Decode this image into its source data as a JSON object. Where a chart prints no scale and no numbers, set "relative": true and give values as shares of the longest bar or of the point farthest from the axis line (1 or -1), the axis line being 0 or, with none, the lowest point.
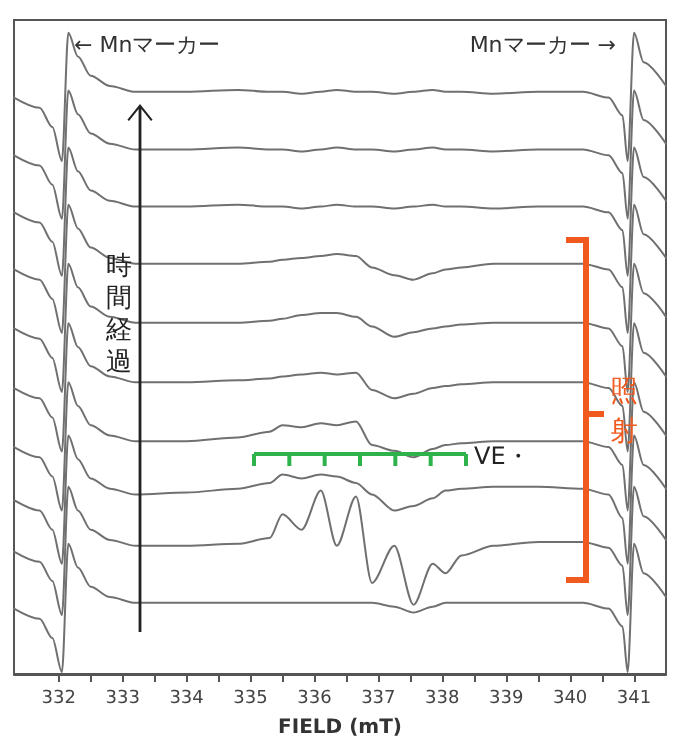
{
  "chart_data": {
    "type": "line",
    "relative": true,
    "xlabel": "FIELD (mT)",
    "x": [
      331.3,
      331.7,
      331.9,
      332.05,
      332.15,
      332.3,
      332.5,
      332.8,
      333.2,
      334,
      334.8,
      335.3,
      335.5,
      335.8,
      336.1,
      336.35,
      336.65,
      336.9,
      337.25,
      337.55,
      337.85,
      338.05,
      338.3,
      338.8,
      339.5,
      340.2,
      340.6,
      340.82,
      340.9,
      341.0,
      341.15,
      341.5
    ],
    "xlim": [
      331.3,
      341.5
    ],
    "xticks": [
      332,
      {
        "value": 332.5,
        "label": null
      },
      333,
      {
        "value": 333.5,
        "label": null
      },
      334,
      {
        "value": 334.5,
        "label": null
      },
      335,
      {
        "value": 335.5,
        "label": null
      },
      336,
      {
        "value": 336.5,
        "label": null
      },
      337,
      {
        "value": 337.5,
        "label": null
      },
      338,
      {
        "value": 338.5,
        "label": null
      },
      339,
      {
        "value": 339.5,
        "label": null
      },
      340,
      {
        "value": 340.5,
        "label": null
      },
      341
    ],
    "grid": false,
    "marker": "none",
    "line_style": "solid",
    "series": [
      {
        "color": "#707070",
        "values": [
          0.899,
          0.883,
          0.853,
          0.8,
          1.0,
          0.963,
          0.933,
          0.917,
          0.908,
          0.908,
          0.911,
          0.908,
          0.908,
          0.905,
          0.908,
          0.911,
          0.908,
          0.908,
          0.905,
          0.908,
          0.911,
          0.908,
          0.908,
          0.905,
          0.908,
          0.908,
          0.899,
          0.871,
          0.8,
          1.0,
          0.954,
          0.917
        ]
      },
      {
        "color": "#707070",
        "values": [
          0.809,
          0.793,
          0.763,
          0.71,
          0.91,
          0.873,
          0.843,
          0.827,
          0.818,
          0.818,
          0.821,
          0.818,
          0.818,
          0.815,
          0.818,
          0.821,
          0.818,
          0.818,
          0.815,
          0.818,
          0.821,
          0.818,
          0.818,
          0.815,
          0.818,
          0.818,
          0.809,
          0.781,
          0.71,
          0.91,
          0.864,
          0.827
        ]
      },
      {
        "color": "#707070",
        "values": [
          0.72,
          0.704,
          0.674,
          0.621,
          0.821,
          0.784,
          0.754,
          0.738,
          0.729,
          0.729,
          0.732,
          0.729,
          0.729,
          0.726,
          0.729,
          0.732,
          0.729,
          0.729,
          0.726,
          0.729,
          0.732,
          0.729,
          0.729,
          0.726,
          0.729,
          0.729,
          0.72,
          0.692,
          0.621,
          0.821,
          0.775,
          0.738
        ]
      },
      {
        "color": "#707070",
        "values": [
          0.631,
          0.615,
          0.585,
          0.532,
          0.732,
          0.695,
          0.665,
          0.649,
          0.64,
          0.64,
          0.64,
          0.643,
          0.646,
          0.649,
          0.652,
          0.655,
          0.652,
          0.634,
          0.622,
          0.615,
          0.625,
          0.631,
          0.634,
          0.64,
          0.64,
          0.64,
          0.631,
          0.603,
          0.532,
          0.732,
          0.686,
          0.649
        ]
      },
      {
        "color": "#707070",
        "values": [
          0.539,
          0.523,
          0.493,
          0.44,
          0.64,
          0.603,
          0.573,
          0.557,
          0.548,
          0.548,
          0.548,
          0.551,
          0.554,
          0.56,
          0.563,
          0.563,
          0.557,
          0.542,
          0.526,
          0.533,
          0.539,
          0.542,
          0.545,
          0.548,
          0.548,
          0.548,
          0.539,
          0.511,
          0.44,
          0.64,
          0.594,
          0.557
        ]
      },
      {
        "color": "#707070",
        "values": [
          0.446,
          0.43,
          0.4,
          0.347,
          0.547,
          0.51,
          0.48,
          0.464,
          0.455,
          0.455,
          0.458,
          0.461,
          0.464,
          0.467,
          0.47,
          0.467,
          0.47,
          0.443,
          0.43,
          0.437,
          0.446,
          0.449,
          0.452,
          0.455,
          0.455,
          0.455,
          0.446,
          0.418,
          0.347,
          0.547,
          0.501,
          0.464
        ]
      },
      {
        "color": "#707070",
        "values": [
          0.354,
          0.338,
          0.308,
          0.255,
          0.455,
          0.418,
          0.388,
          0.372,
          0.363,
          0.363,
          0.369,
          0.378,
          0.388,
          0.385,
          0.391,
          0.388,
          0.394,
          0.357,
          0.348,
          0.338,
          0.351,
          0.357,
          0.36,
          0.363,
          0.363,
          0.363,
          0.354,
          0.326,
          0.255,
          0.455,
          0.409,
          0.372
        ]
      },
      {
        "color": "#707070",
        "values": [
          0.271,
          0.255,
          0.225,
          0.172,
          0.372,
          0.335,
          0.305,
          0.289,
          0.28,
          0.283,
          0.289,
          0.298,
          0.311,
          0.305,
          0.311,
          0.308,
          0.298,
          0.28,
          0.255,
          0.262,
          0.274,
          0.286,
          0.289,
          0.292,
          0.292,
          0.289,
          0.28,
          0.243,
          0.172,
          0.372,
          0.326,
          0.289
        ]
      },
      {
        "color": "#707070",
        "values": [
          0.191,
          0.175,
          0.145,
          0.092,
          0.292,
          0.255,
          0.225,
          0.209,
          0.2,
          0.2,
          0.203,
          0.212,
          0.249,
          0.225,
          0.286,
          0.2,
          0.277,
          0.142,
          0.2,
          0.108,
          0.172,
          0.157,
          0.185,
          0.2,
          0.206,
          0.206,
          0.197,
          0.169,
          0.092,
          0.292,
          0.246,
          0.209
        ]
      },
      {
        "color": "#707070",
        "values": [
          0.102,
          0.086,
          0.056,
          0.003,
          0.203,
          0.166,
          0.136,
          0.12,
          0.111,
          0.111,
          0.111,
          0.111,
          0.111,
          0.111,
          0.111,
          0.111,
          0.111,
          0.111,
          0.105,
          0.096,
          0.105,
          0.111,
          0.111,
          0.111,
          0.111,
          0.111,
          0.102,
          0.074,
          0.003,
          0.203,
          0.157,
          0.12
        ]
      }
    ],
    "annotations": [
      "← Mnマーカー",
      "Mnマーカー →",
      "時間経過",
      "VE・",
      "照射"
    ]
  }
}
